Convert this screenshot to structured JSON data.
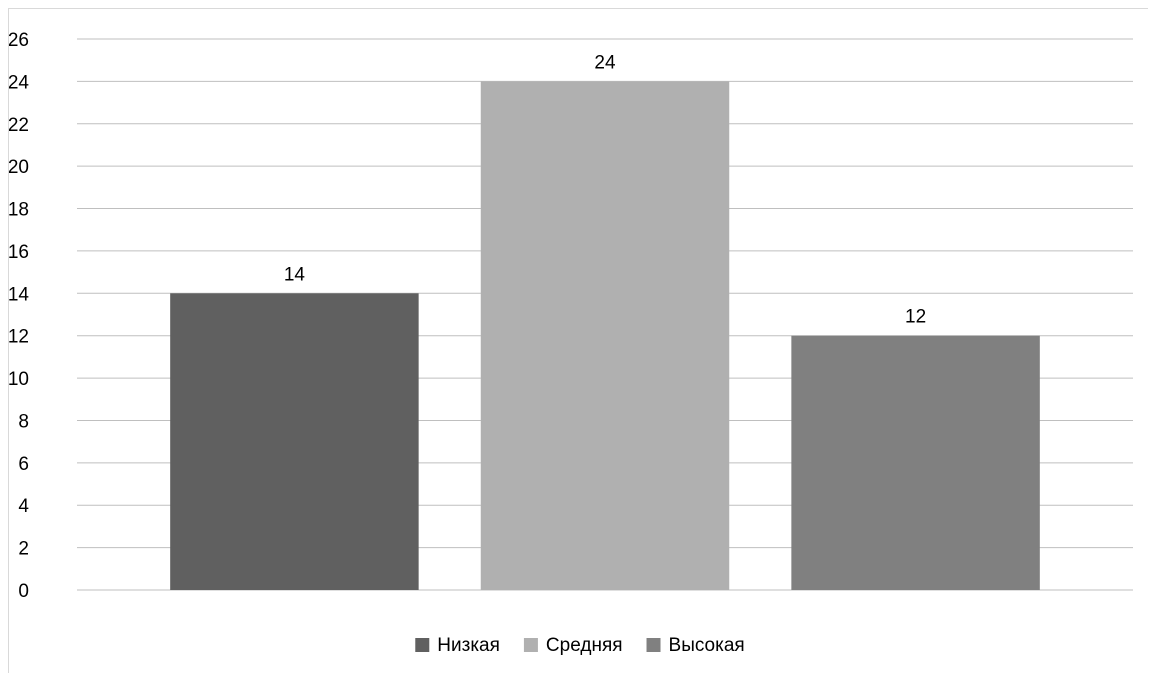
{
  "chart_data": {
    "type": "bar",
    "title": "",
    "xlabel": "",
    "ylabel": "",
    "categories": [
      ""
    ],
    "series": [
      {
        "name": "Низкая",
        "values": [
          14
        ],
        "color": "#606060"
      },
      {
        "name": "Средняя",
        "values": [
          24
        ],
        "color": "#b0b0b0"
      },
      {
        "name": "Высокая",
        "values": [
          12
        ],
        "color": "#808080"
      }
    ],
    "ylim": [
      0,
      26
    ],
    "yticks": [
      0,
      2,
      4,
      6,
      8,
      10,
      12,
      14,
      16,
      18,
      20,
      22,
      24,
      26
    ],
    "data_labels": true,
    "grid": true,
    "gridline_color": "#bfbfbf",
    "legend_position": "bottom"
  }
}
